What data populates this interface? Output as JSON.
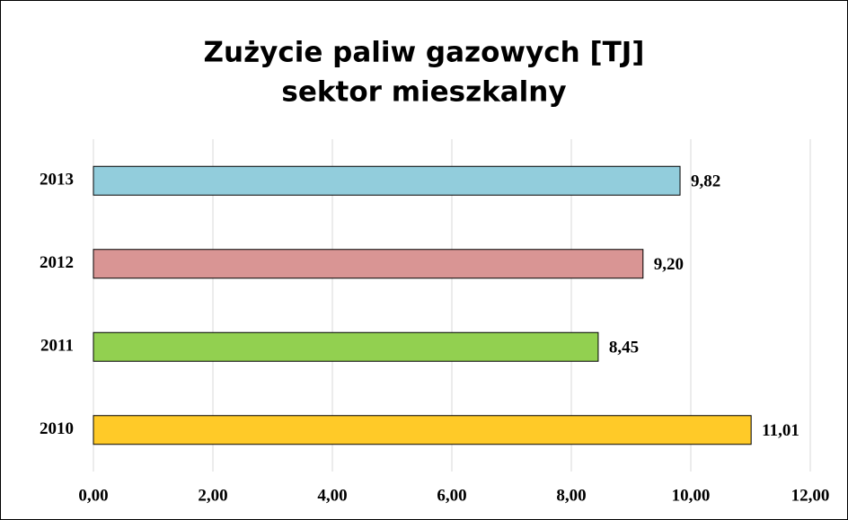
{
  "chart_data": {
    "type": "barh",
    "title": "Zużycie paliw gazowych [TJ]",
    "subtitle": "sektor mieszkalny",
    "categories": [
      "2010",
      "2011",
      "2012",
      "2013"
    ],
    "values": [
      11.01,
      8.45,
      9.2,
      9.82
    ],
    "value_labels": [
      "11,01",
      "8,45",
      "9,20",
      "9,82"
    ],
    "colors": [
      "#ffca28",
      "#92d050",
      "#d99594",
      "#92cddc"
    ],
    "xlim": [
      0,
      12
    ],
    "xticks": [
      {
        "value": 0,
        "label": "0,00"
      },
      {
        "value": 2,
        "label": "2,00"
      },
      {
        "value": 4,
        "label": "4,00"
      },
      {
        "value": 6,
        "label": "6,00"
      },
      {
        "value": 8,
        "label": "8,00"
      },
      {
        "value": 10,
        "label": "10,00"
      },
      {
        "value": 12,
        "label": "12,00"
      }
    ],
    "grid": true
  }
}
